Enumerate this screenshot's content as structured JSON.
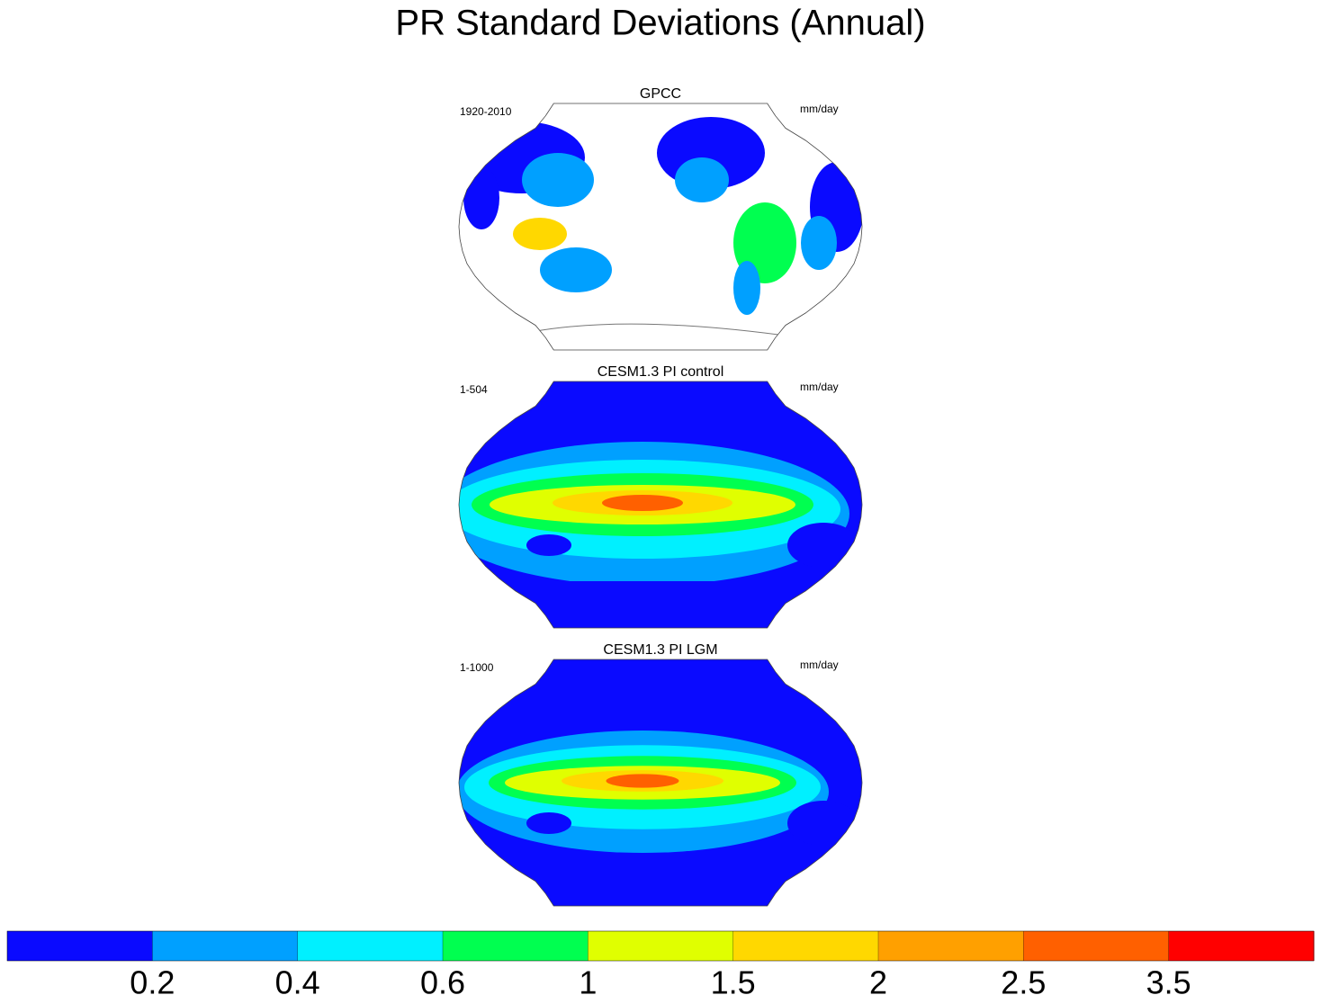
{
  "title": "PR Standard Deviations (Annual)",
  "panels": [
    {
      "title": "GPCC",
      "period": "1920-2010",
      "units": "mm/day"
    },
    {
      "title": "CESM1.3 PI control",
      "period": "1-504",
      "units": "mm/day"
    },
    {
      "title": "CESM1.3 PI LGM",
      "period": "1-1000",
      "units": "mm/day"
    }
  ],
  "colorbar": {
    "colors": [
      "#0a0aff",
      "#00a0ff",
      "#00f0ff",
      "#00ff50",
      "#e0ff00",
      "#ffd800",
      "#ffa000",
      "#ff6000",
      "#ff0000"
    ],
    "levels": [
      0.2,
      0.4,
      0.6,
      1,
      1.5,
      2,
      2.5,
      3.5
    ]
  }
}
